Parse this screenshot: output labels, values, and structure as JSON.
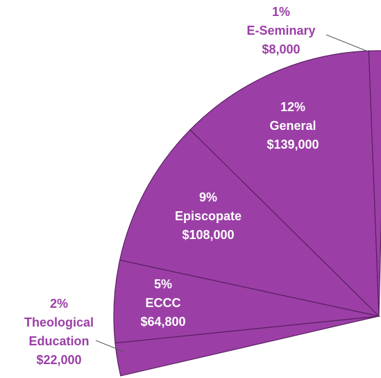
{
  "chart_data": {
    "type": "pie",
    "categories": [
      "Theological Education",
      "ECCC",
      "Episcopate",
      "General",
      "E-Seminary"
    ],
    "values": [
      2,
      5,
      9,
      12,
      1
    ],
    "value_labels": [
      "2%",
      "5%",
      "9%",
      "12%",
      "1%"
    ],
    "amount_labels": [
      "$22,000",
      "$64,800",
      "$108,000",
      "$139,000",
      "$8,000"
    ],
    "color": "#9b3fa6"
  }
}
